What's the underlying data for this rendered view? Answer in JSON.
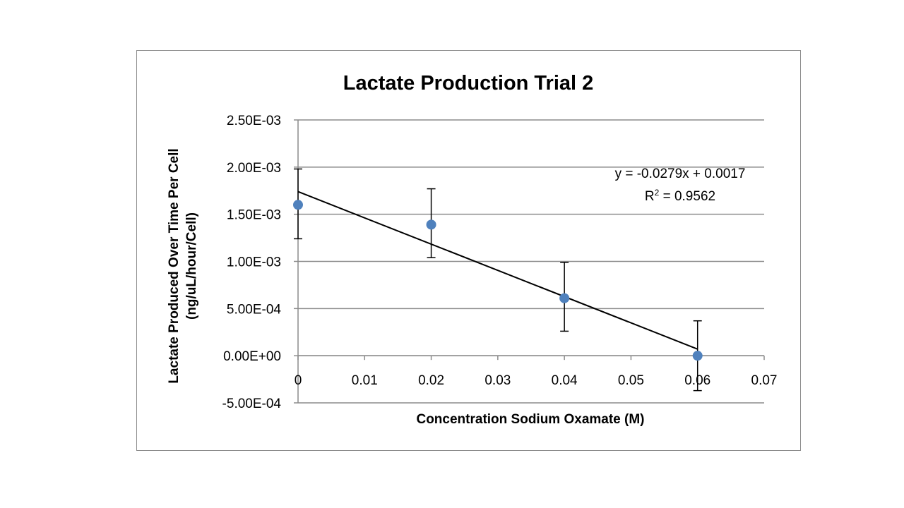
{
  "chart_data": {
    "type": "scatter",
    "title": "Lactate Production Trial 2",
    "xlabel": "Concentration Sodium Oxamate (M)",
    "ylabel_lines": [
      "Lactate Produced Over Time Per Cell",
      "(ng/uL/hour/Cell)"
    ],
    "xlim": [
      0,
      0.07
    ],
    "ylim": [
      -0.0005,
      0.0025
    ],
    "x_ticks": [
      0,
      0.01,
      0.02,
      0.03,
      0.04,
      0.05,
      0.06,
      0.07
    ],
    "x_tick_labels": [
      "0",
      "0.01",
      "0.02",
      "0.03",
      "0.04",
      "0.05",
      "0.06",
      "0.07"
    ],
    "y_ticks": [
      0.0025,
      0.002,
      0.0015,
      0.001,
      0.0005,
      0,
      -0.0005
    ],
    "y_tick_labels": [
      "2.50E-03",
      "2.00E-03",
      "1.50E-03",
      "1.00E-03",
      "5.00E-04",
      "0.00E+00",
      "-5.00E-04"
    ],
    "grid": "horizontal",
    "point_color": "#4f81bd",
    "series": [
      {
        "points": [
          {
            "x": 0,
            "y": 0.0016,
            "err_low": 0.00124,
            "err_high": 0.00198
          },
          {
            "x": 0.02,
            "y": 0.00139,
            "err_low": 0.00104,
            "err_high": 0.00177
          },
          {
            "x": 0.04,
            "y": 0.00061,
            "err_low": 0.00026,
            "err_high": 0.00099
          },
          {
            "x": 0.06,
            "y": 0,
            "err_low": -0.00037,
            "err_high": 0.00037
          }
        ]
      }
    ],
    "trendline": {
      "slope": -0.0279,
      "intercept": 0.0017,
      "x_range": [
        0,
        0.06
      ],
      "y_start": 0.00174,
      "y_end": 7e-05
    },
    "equation_text": "y = -0.0279x + 0.0017",
    "r2_label": "R",
    "r2_sup": "2",
    "r2_value_text": " = 0.9562"
  }
}
